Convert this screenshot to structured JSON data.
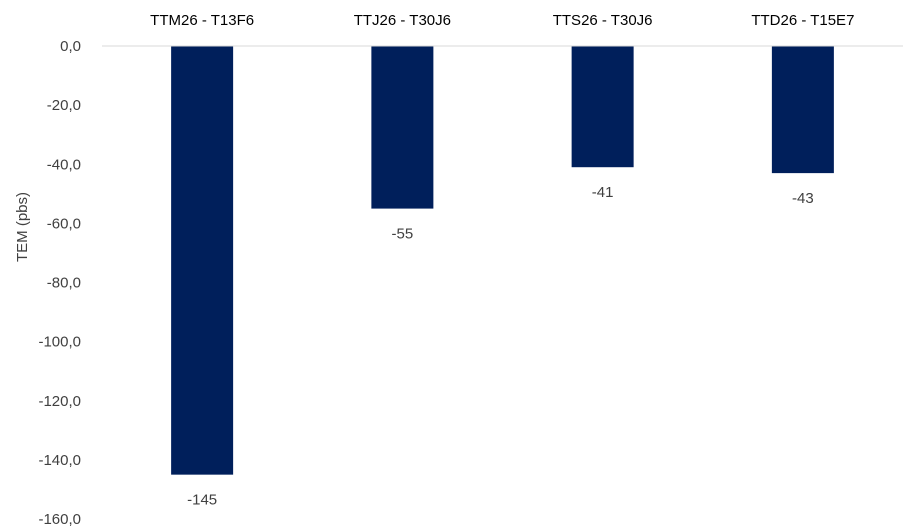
{
  "chart_data": {
    "type": "bar",
    "title": "",
    "xlabel": "",
    "ylabel": "TEM (pbs)",
    "categories": [
      "TTM26 - T13F6",
      "TTJ26 - T30J6",
      "TTS26 - T30J6",
      "TTD26 - T15E7"
    ],
    "values": [
      -145,
      -55,
      -41,
      -43
    ],
    "data_labels": [
      "-145",
      "-55",
      "-41",
      "-43"
    ],
    "ylim": [
      -160,
      0
    ],
    "yticks": [
      0,
      -20,
      -40,
      -60,
      -80,
      -100,
      -120,
      -140,
      -160
    ],
    "ytick_labels": [
      "0,0",
      "-20,0",
      "-40,0",
      "-60,0",
      "-80,0",
      "-100,0",
      "-120,0",
      "-140,0",
      "-160,0"
    ],
    "category_labels_position": "top",
    "grid": false,
    "legend": "none",
    "bar_color": "#001f5b",
    "axis_color": "#d9d9d9"
  }
}
